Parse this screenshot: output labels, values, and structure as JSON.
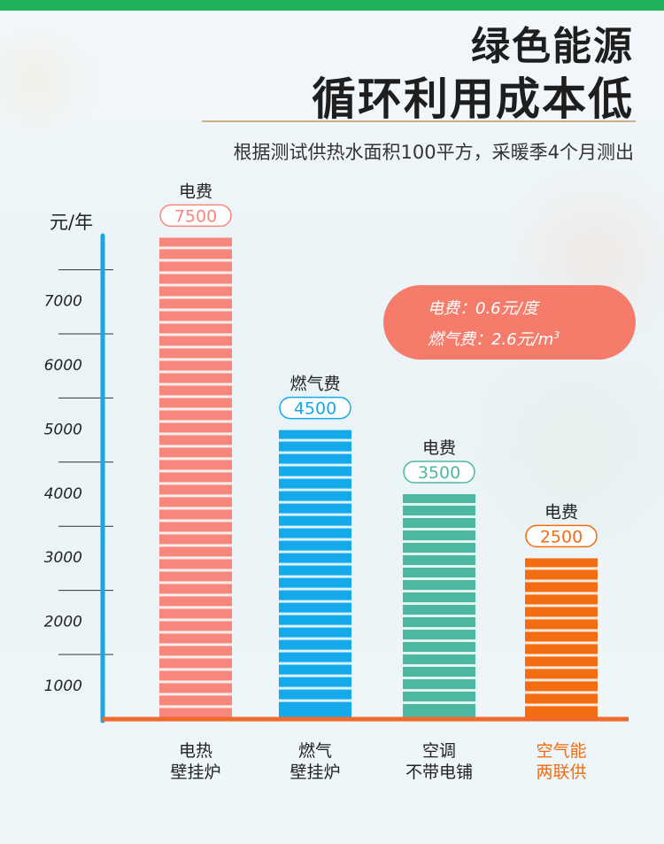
{
  "header": {
    "title_line1": "绿色能源",
    "title_line2": "循环利用成本低",
    "subtitle": "根据测试供热水面积100平方，采暖季4个月测出"
  },
  "note": {
    "line1": "电费：0.6元/度",
    "line2_prefix": "燃气费：2.6元/m",
    "line2_sup": "3"
  },
  "colors": {
    "topbar": "#1fb25a",
    "axis_y": "#1aa7e0",
    "axis_x": "#ef6a2b",
    "note_bg": "#f57c6b"
  },
  "chart_data": {
    "type": "bar",
    "ylabel": "元/年",
    "yticks": [
      1000,
      2000,
      3000,
      4000,
      5000,
      6000,
      7000
    ],
    "ylim": [
      0,
      7700
    ],
    "categories": [
      [
        "电热",
        "壁挂炉"
      ],
      [
        "燃气",
        "壁挂炉"
      ],
      [
        "空调",
        "不带电铺"
      ],
      [
        "空气能",
        "两联供"
      ]
    ],
    "value_labels": [
      "电费",
      "燃气费",
      "电费",
      "电费"
    ],
    "values": [
      7500,
      4500,
      3500,
      2500
    ],
    "bar_colors": [
      "#f7877c",
      "#14a9ea",
      "#4cb8a1",
      "#f36c12"
    ],
    "category_label_colors": [
      "#222222",
      "#222222",
      "#222222",
      "#f36c12"
    ],
    "grid": true
  }
}
